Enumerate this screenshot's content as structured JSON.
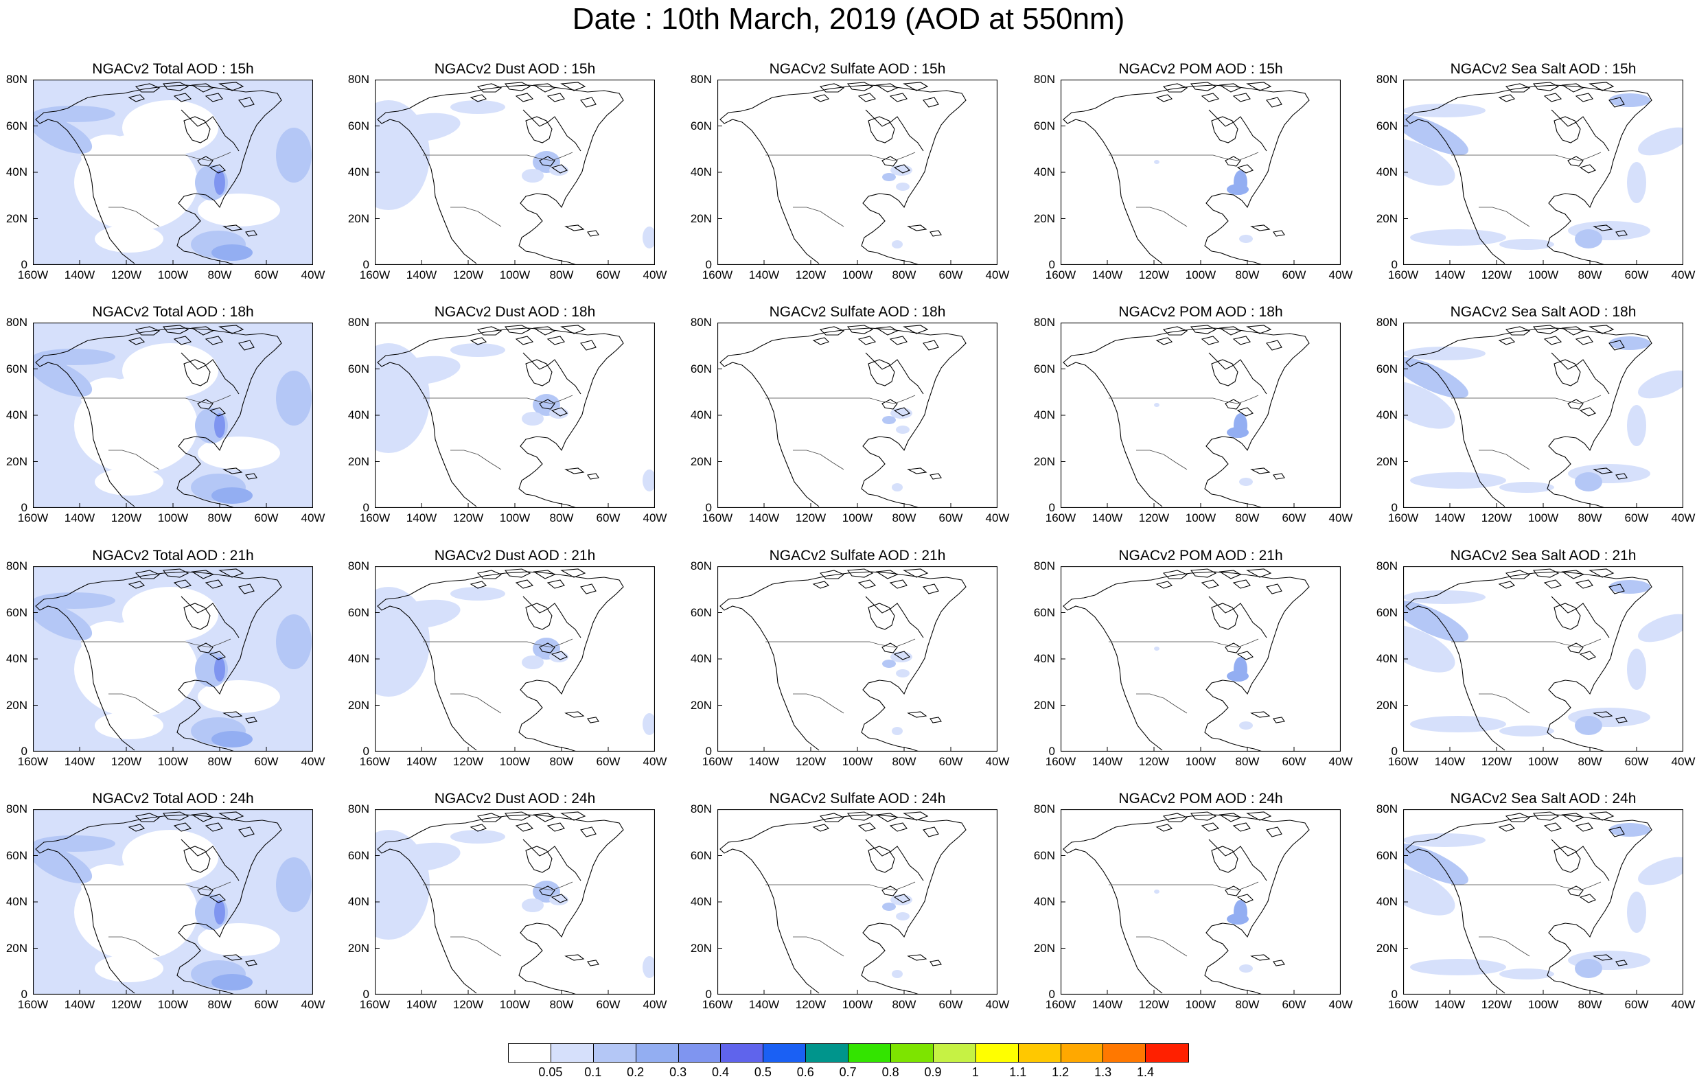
{
  "title": "Date : 10th March, 2019 (AOD at 550nm)",
  "columns": [
    {
      "key": "total",
      "titles": [
        "NGACv2 Total AOD : 15h",
        "NGACv2 Total AOD : 18h",
        "NGACv2 Total AOD : 21h",
        "NGACv2 Total AOD : 24h"
      ]
    },
    {
      "key": "dust",
      "titles": [
        "NGACv2 Dust AOD : 15h",
        "NGACv2 Dust AOD : 18h",
        "NGACv2 Dust AOD : 21h",
        "NGACv2 Dust AOD : 24h"
      ]
    },
    {
      "key": "sulfate",
      "titles": [
        "NGACv2 Sulfate AOD : 15h",
        "NGACv2 Sulfate AOD : 18h",
        "NGACv2 Sulfate AOD : 21h",
        "NGACv2 Sulfate AOD : 24h"
      ]
    },
    {
      "key": "pom",
      "titles": [
        "NGACv2 POM AOD : 15h",
        "NGACv2 POM AOD : 18h",
        "NGACv2 POM AOD : 21h",
        "NGACv2 POM AOD : 24h"
      ]
    },
    {
      "key": "seasalt",
      "titles": [
        "NGACv2 Sea Salt AOD : 15h",
        "NGACv2 Sea Salt AOD : 18h",
        "NGACv2 Sea Salt AOD : 21h",
        "NGACv2 Sea Salt  AOD : 24h"
      ]
    }
  ],
  "lat_labels": [
    "80N",
    "60N",
    "40N",
    "20N",
    "0"
  ],
  "lon_labels": [
    "160W",
    "140W",
    "120W",
    "100W",
    "80W",
    "60W",
    "40W"
  ],
  "colorbar": {
    "colors": [
      "#ffffff",
      "#d6e0fb",
      "#b4c7f6",
      "#93aef2",
      "#7f95f0",
      "#5f64ec",
      "#1a60f4",
      "#00958c",
      "#33e400",
      "#7de400",
      "#c6f244",
      "#ffff00",
      "#ffc800",
      "#ffa800",
      "#ff7800",
      "#ff2000"
    ],
    "labels": [
      "0.05",
      "0.1",
      "0.2",
      "0.3",
      "0.4",
      "0.5",
      "0.6",
      "0.7",
      "0.8",
      "0.9",
      "1",
      "1.1",
      "1.2",
      "1.3",
      "1.4"
    ]
  }
}
